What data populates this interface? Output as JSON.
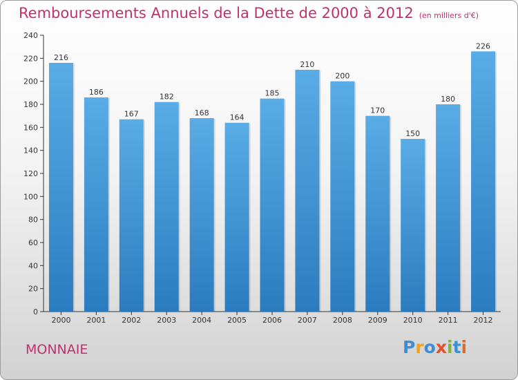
{
  "header": {
    "title": "Remboursements Annuels de la Dette de 2000 à 2012",
    "unit": "(en milliers d'€)"
  },
  "footer": {
    "commune": "MONNAIE",
    "logo": "Proxiti"
  },
  "colors": {
    "title": "#c0306e",
    "bar_top": "#5aace6",
    "bar_bottom": "#2a7cbf"
  },
  "chart_data": {
    "type": "bar",
    "title": "Remboursements Annuels de la Dette de 2000 à 2012",
    "subtitle": "(en milliers d'€)",
    "xlabel": "",
    "ylabel": "",
    "categories": [
      "2000",
      "2001",
      "2002",
      "2003",
      "2004",
      "2005",
      "2006",
      "2007",
      "2008",
      "2009",
      "2010",
      "2011",
      "2012"
    ],
    "values": [
      216,
      186,
      167,
      182,
      168,
      164,
      185,
      210,
      200,
      170,
      150,
      180,
      226
    ],
    "ylim": [
      0,
      240
    ],
    "yticks": [
      0,
      20,
      40,
      60,
      80,
      100,
      120,
      140,
      160,
      180,
      200,
      220,
      240
    ],
    "grid": false,
    "legend": "none"
  }
}
